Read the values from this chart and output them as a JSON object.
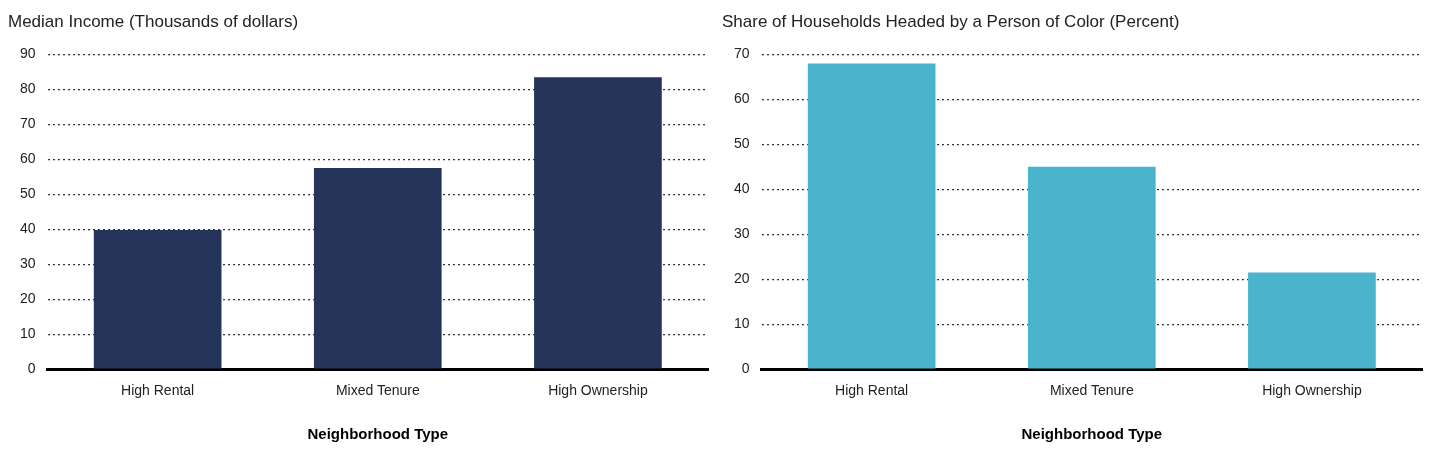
{
  "chart_data": [
    {
      "type": "bar",
      "title": "Median Income (Thousands of dollars)",
      "xlabel": "Neighborhood Type",
      "categories": [
        "High Rental",
        "Mixed Tenure",
        "High Ownership"
      ],
      "values": [
        39.8,
        57.5,
        83.5
      ],
      "color": "#243559",
      "ylim": [
        0,
        90
      ],
      "yticks": [
        0,
        10,
        20,
        30,
        40,
        50,
        60,
        70,
        80,
        90
      ],
      "grid": "y",
      "legend": false
    },
    {
      "type": "bar",
      "title": "Share of Households Headed by a Person of Color (Percent)",
      "xlabel": "Neighborhood Type",
      "categories": [
        "High Rental",
        "Mixed Tenure",
        "High Ownership"
      ],
      "values": [
        68,
        45,
        21.5
      ],
      "color": "#4ab4cc",
      "ylim": [
        0,
        70
      ],
      "yticks": [
        0,
        10,
        20,
        30,
        40,
        50,
        60,
        70
      ],
      "grid": "y",
      "legend": false
    }
  ]
}
